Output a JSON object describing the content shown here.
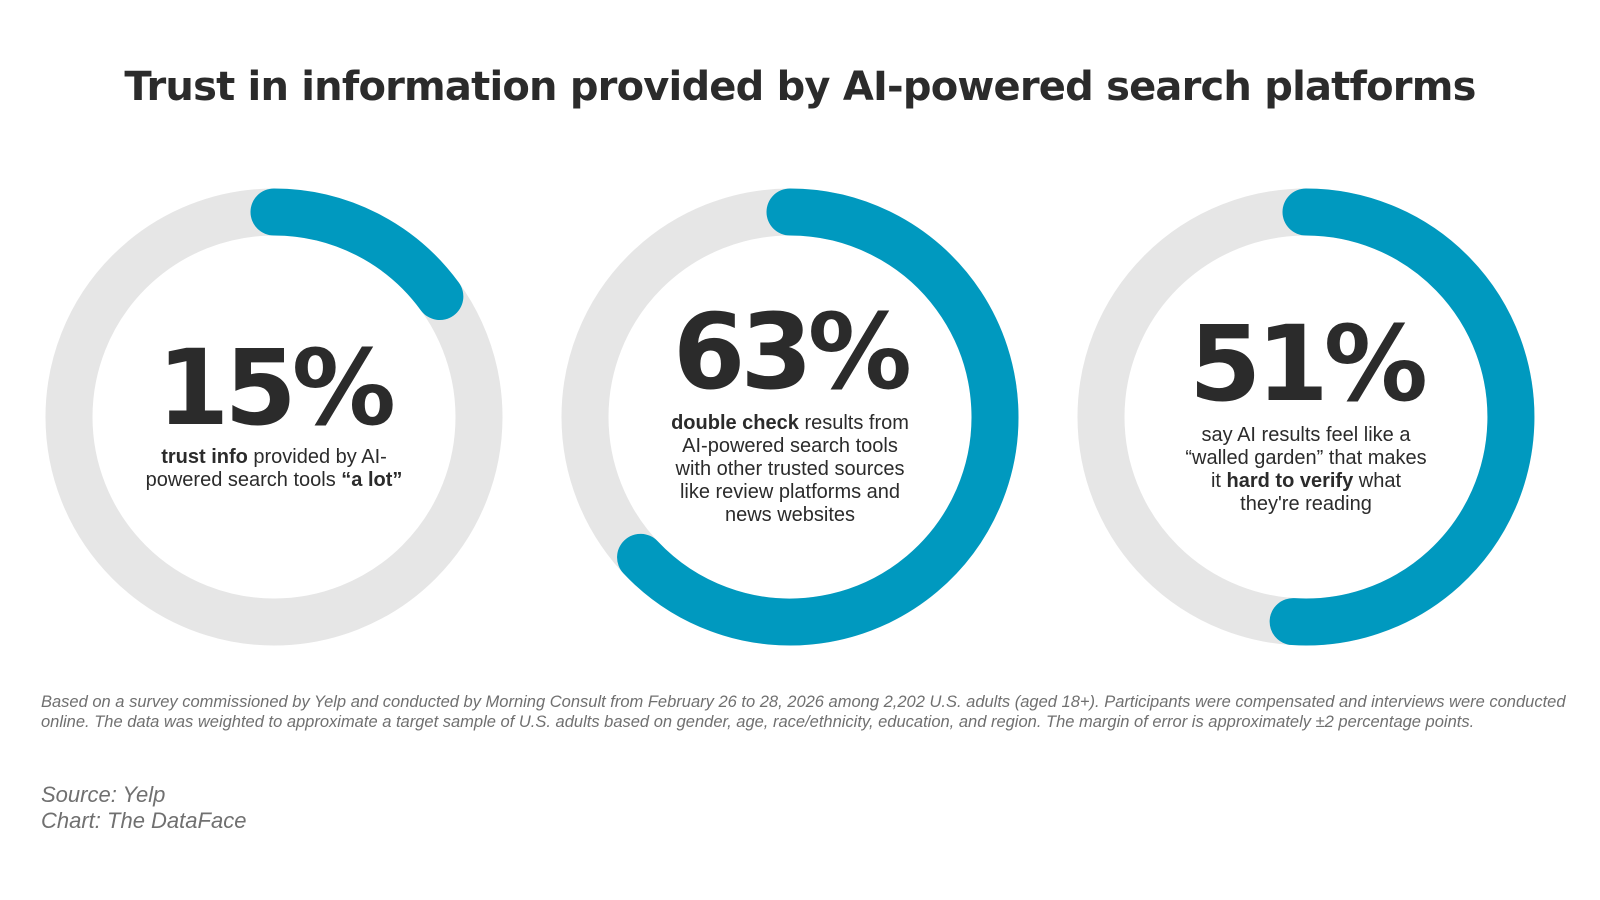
{
  "title": "Trust in information provided by AI-powered search platforms",
  "colors": {
    "track": "#e6e6e6",
    "fill": "#0099bf",
    "text": "#2b2b2b",
    "muted": "#707070"
  },
  "chart_data": {
    "type": "pie",
    "items": [
      {
        "value": 15,
        "label": "15%",
        "desc": [
          [
            {
              "t": "trust info",
              "b": true
            },
            {
              "t": " provided by AI-",
              "b": false
            }
          ],
          [
            {
              "t": "powered search tools ",
              "b": false
            },
            {
              "t": "“a lot”",
              "b": true
            }
          ]
        ]
      },
      {
        "value": 63,
        "label": "63%",
        "desc": [
          [
            {
              "t": "double check",
              "b": true
            },
            {
              "t": " results from",
              "b": false
            }
          ],
          [
            {
              "t": "AI-powered search tools",
              "b": false
            }
          ],
          [
            {
              "t": "with other trusted sources",
              "b": false
            }
          ],
          [
            {
              "t": "like review platforms and",
              "b": false
            }
          ],
          [
            {
              "t": "news websites",
              "b": false
            }
          ]
        ]
      },
      {
        "value": 51,
        "label": "51%",
        "desc": [
          [
            {
              "t": "say AI results feel like a",
              "b": false
            }
          ],
          [
            {
              "t": "“walled garden” that makes",
              "b": false
            }
          ],
          [
            {
              "t": "it ",
              "b": false
            },
            {
              "t": "hard to verify",
              "b": true
            },
            {
              "t": " what",
              "b": false
            }
          ],
          [
            {
              "t": "they're reading",
              "b": false
            }
          ]
        ]
      }
    ]
  },
  "footnote": "Based on a survey commissioned by Yelp and conducted by Morning Consult from February 26 to 28, 2026 among 2,202 U.S. adults (aged 18+). Participants were compensated and interviews were conducted online. The data was weighted to approximate a target sample of U.S. adults based on gender, age, race/ethnicity, education, and region. The margin of error is approximately ±2 percentage points.",
  "source": "Source: Yelp",
  "chart_credit": "Chart: The DataFace"
}
